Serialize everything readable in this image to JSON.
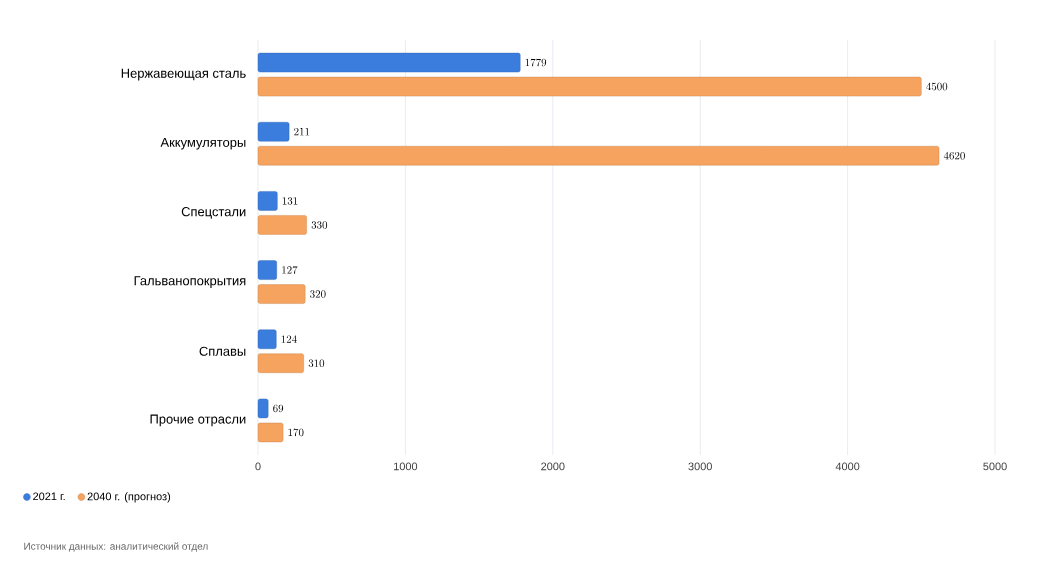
{
  "chart_data": {
    "type": "bar",
    "orientation": "horizontal",
    "categories": [
      "Нержавеющая сталь",
      "Аккумуляторы",
      "Спецстали",
      "Гальванопокрытия",
      "Сплавы",
      "Прочие отрасли"
    ],
    "series": [
      {
        "name": "2021 г.",
        "color": "#3b7ddd",
        "values": [
          1779,
          211,
          131,
          127,
          124,
          69
        ]
      },
      {
        "name": "2040 г. (прогноз)",
        "color": "#f5a35e",
        "values": [
          4500,
          4620,
          330,
          320,
          310,
          170
        ]
      }
    ],
    "xlim": [
      0,
      5000
    ],
    "xticks": [
      0,
      1000,
      2000,
      3000,
      4000,
      5000
    ],
    "grid": "x",
    "legend": "bottom left",
    "data_labels": true,
    "annotations": [
      "Источник данных: аналитический отдел"
    ]
  }
}
